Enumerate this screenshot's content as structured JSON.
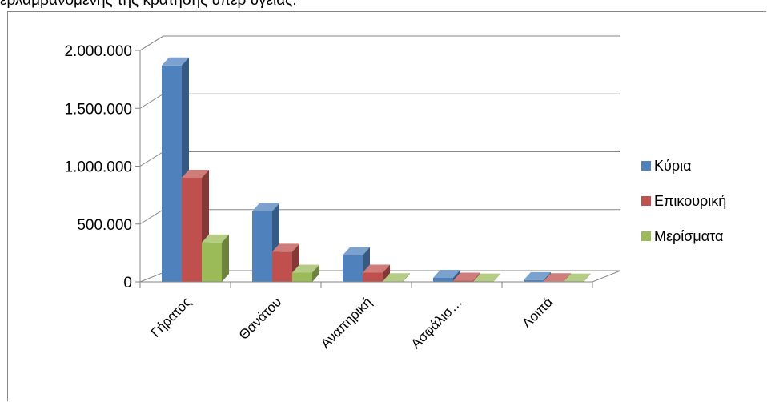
{
  "caption": "ερλαμβανόμενης της κράτησης υπέρ υγείας.",
  "chart_data": {
    "type": "bar",
    "title": "",
    "categories": [
      "Γήρατος",
      "Θανάτου",
      "Αναπηρική",
      "Ασφάλισ…",
      "Λοιπά"
    ],
    "series": [
      {
        "name": "Κύρια",
        "values": [
          1870000,
          610000,
          230000,
          35000,
          15000
        ],
        "color": "#4F81BD"
      },
      {
        "name": "Επικουρική",
        "values": [
          900000,
          260000,
          80000,
          10000,
          5000
        ],
        "color": "#C0504D"
      },
      {
        "name": "Μερίσματα",
        "values": [
          340000,
          80000,
          5000,
          3000,
          2000
        ],
        "color": "#9BBB59"
      }
    ],
    "ylim": [
      0,
      2000000
    ],
    "yticks": [
      "0",
      "500.000",
      "1.000.000",
      "1.500.000",
      "2.000.000"
    ],
    "ytick_values": [
      0,
      500000,
      1000000,
      1500000,
      2000000
    ],
    "grid": true,
    "legend": "right"
  }
}
